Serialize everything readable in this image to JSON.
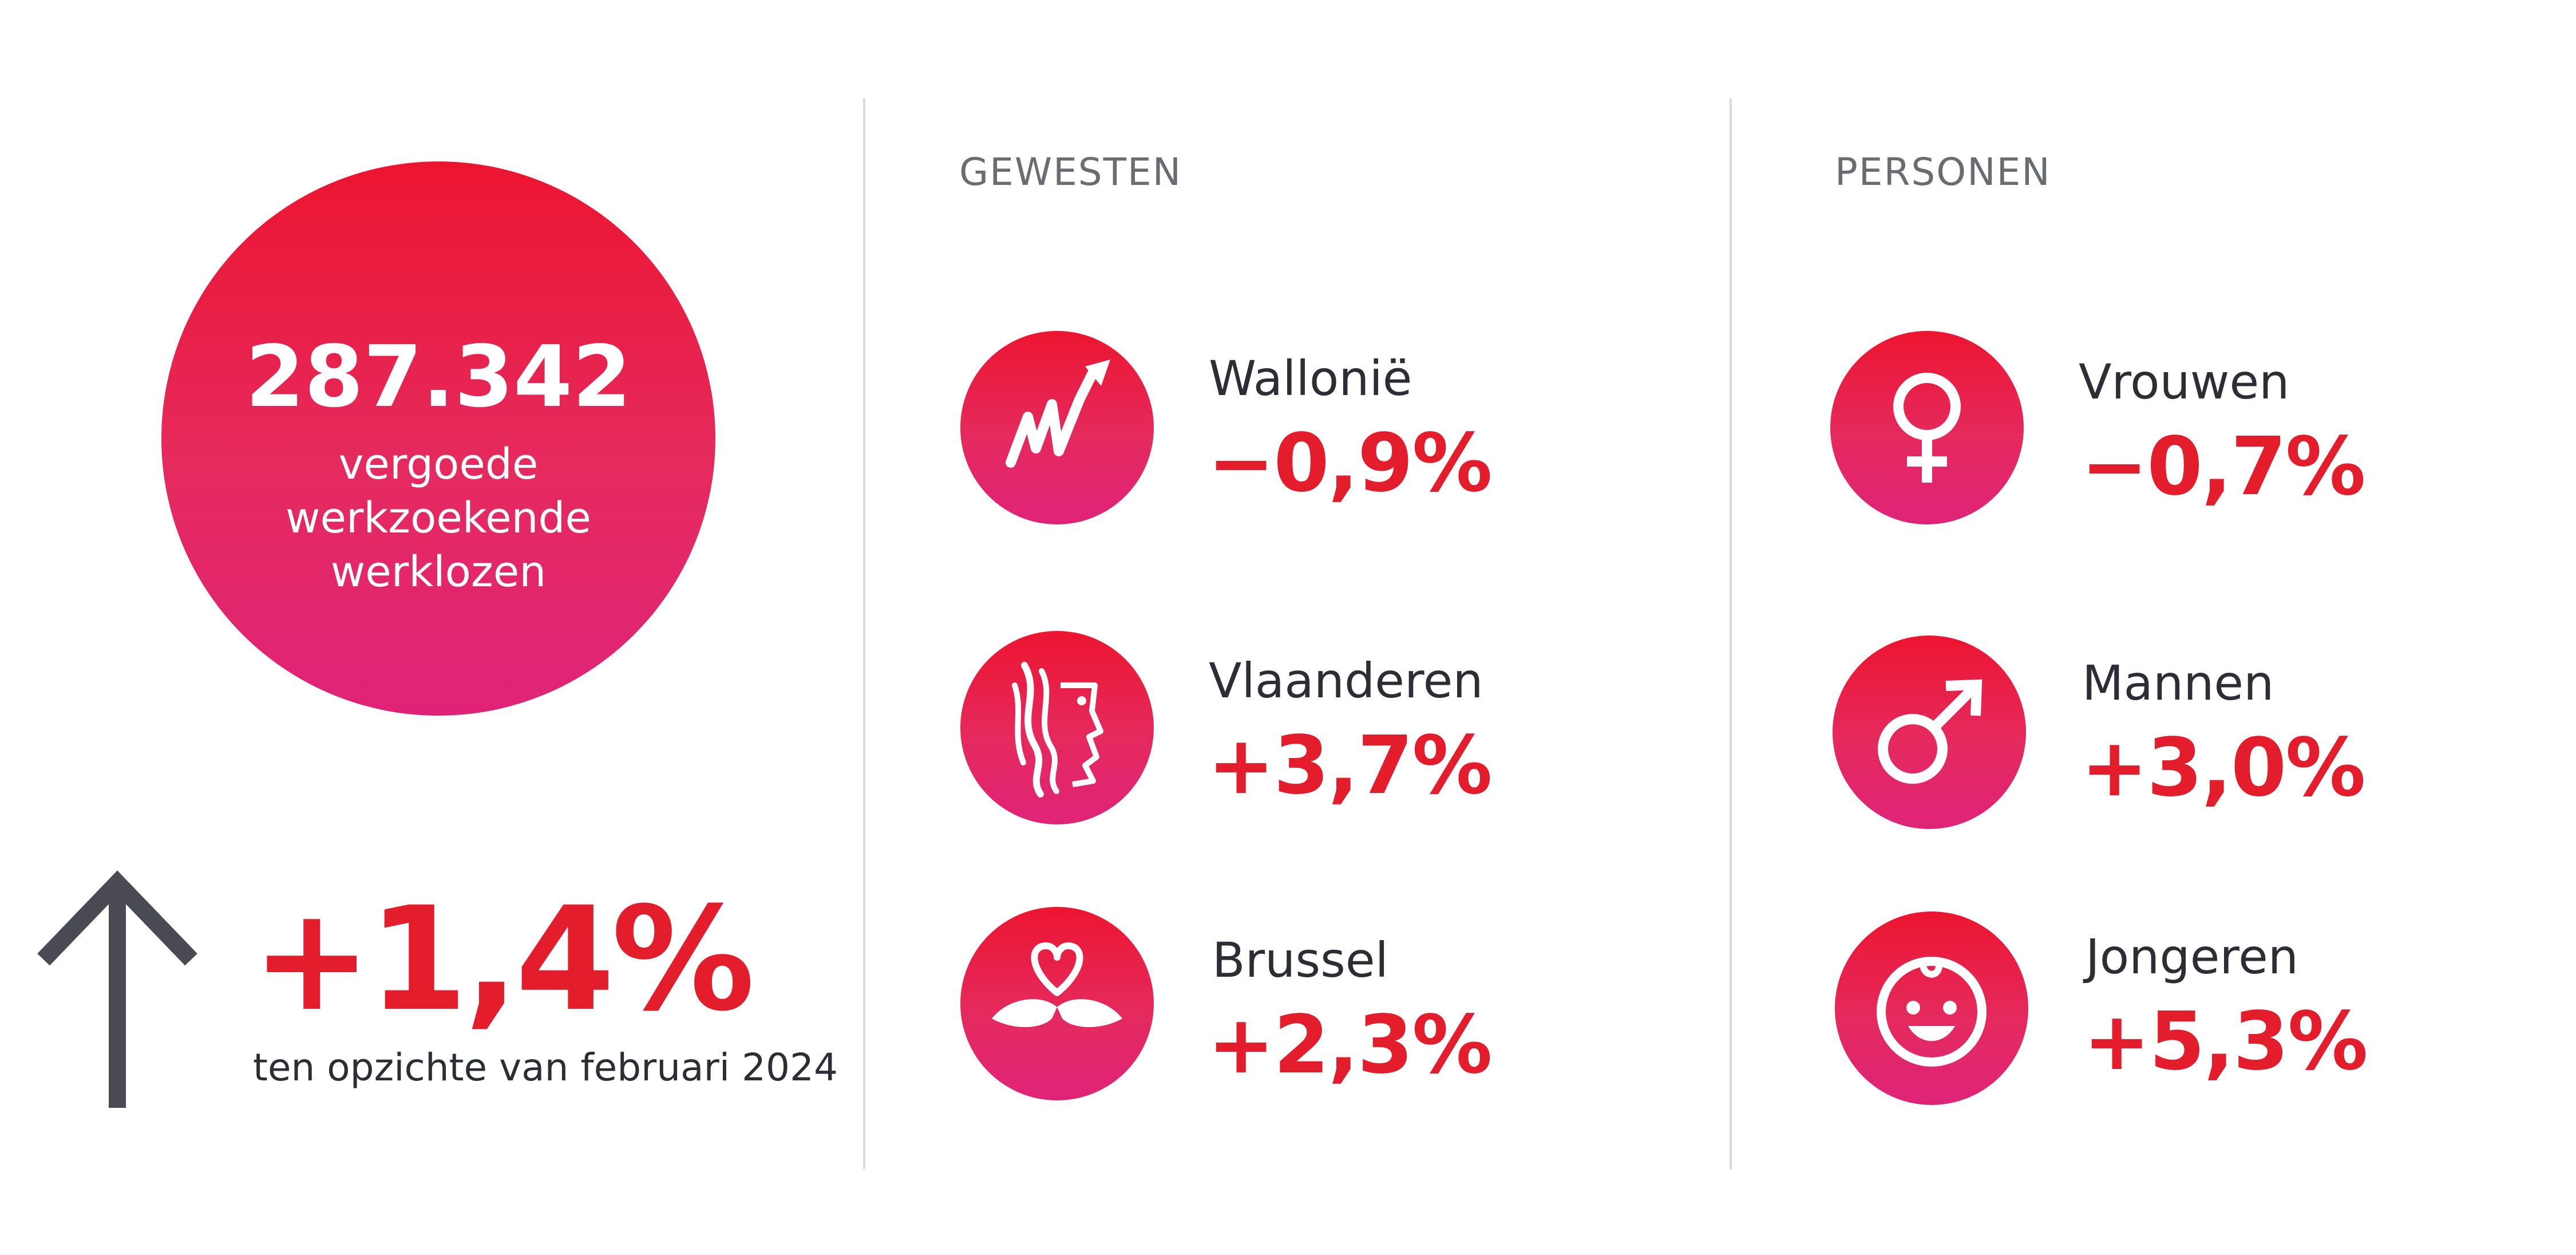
{
  "total": {
    "value": "287.342",
    "label_lines": [
      "vergoede",
      "werkzoekende",
      "werklozen"
    ]
  },
  "change": {
    "value": "+1,4%",
    "caption": "ten opzichte van februari 2024",
    "arrow_icon": "arrow-up-icon"
  },
  "gewesten": {
    "title": "GEWESTEN",
    "items": [
      {
        "label": "Wallonië",
        "value": "−0,9%",
        "icon": "wallonia-rooster-icon"
      },
      {
        "label": "Vlaanderen",
        "value": "+3,7%",
        "icon": "flanders-lion-icon"
      },
      {
        "label": "Brussel",
        "value": "+2,3%",
        "icon": "brussels-iris-heart-icon"
      }
    ]
  },
  "personen": {
    "title": "PERSONEN",
    "items": [
      {
        "label": "Vrouwen",
        "value": "−0,7%",
        "icon": "female-symbol-icon"
      },
      {
        "label": "Mannen",
        "value": "+3,0%",
        "icon": "male-symbol-icon"
      },
      {
        "label": "Jongeren",
        "value": "+5,3%",
        "icon": "smiley-face-icon"
      }
    ]
  },
  "colors": {
    "accent_red": "#e31d2b",
    "gradient_top": "#ec1530",
    "gradient_bottom": "#e02378",
    "text_dark": "#2d2d35",
    "divider": "#d9d9d9",
    "arrow": "#4a4a55"
  }
}
